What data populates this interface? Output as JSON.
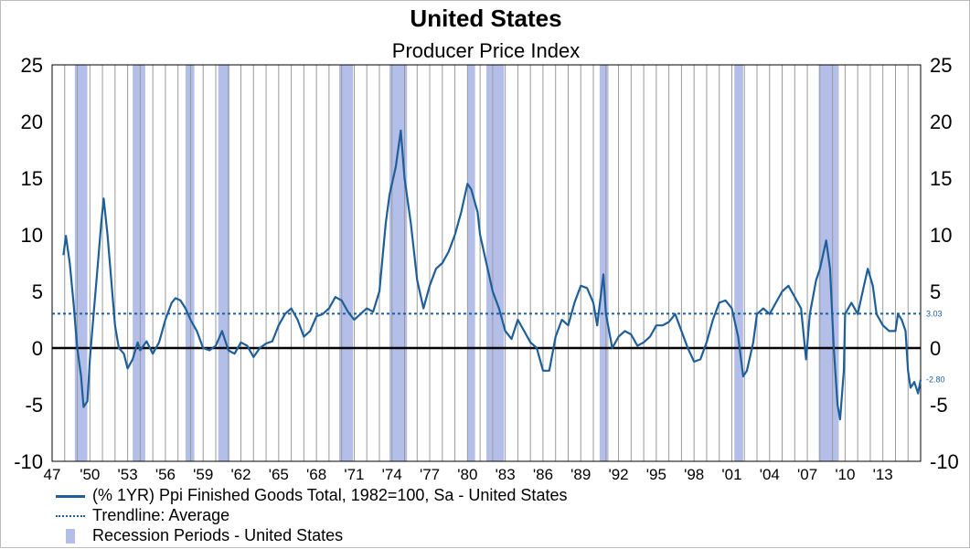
{
  "chart_data": {
    "type": "line",
    "title": "United States",
    "subtitle": "Producer Price Index",
    "ylim": [
      -10,
      25
    ],
    "yticks": [
      "25",
      "20",
      "15",
      "10",
      "5",
      "0",
      "-5",
      "-10"
    ],
    "xlim": [
      1947,
      2016
    ],
    "xticks": [
      "47",
      "'50",
      "'53",
      "'56",
      "'59",
      "'62",
      "'65",
      "'68",
      "'71",
      "'74",
      "'77",
      "'80",
      "'83",
      "'86",
      "'89",
      "'92",
      "'95",
      "'98",
      "'01",
      "'04",
      "'07",
      "'10",
      "'13"
    ],
    "grid": "vertical",
    "series": [
      {
        "name": "(% 1YR) Ppi Finished Goods Total, 1982=100, Sa - United States",
        "color": "#1f5f99",
        "end_label": "-2.80",
        "points": [
          [
            1947.9,
            8.2
          ],
          [
            1948.1,
            9.9
          ],
          [
            1948.4,
            7.5
          ],
          [
            1948.7,
            4
          ],
          [
            1949.0,
            0
          ],
          [
            1949.3,
            -2.5
          ],
          [
            1949.5,
            -5.2
          ],
          [
            1949.8,
            -4.7
          ],
          [
            1950.0,
            -1
          ],
          [
            1950.3,
            3
          ],
          [
            1950.6,
            7
          ],
          [
            1950.9,
            11
          ],
          [
            1951.1,
            13.2
          ],
          [
            1951.4,
            10
          ],
          [
            1951.7,
            6
          ],
          [
            1952.0,
            2
          ],
          [
            1952.3,
            0
          ],
          [
            1952.7,
            -0.5
          ],
          [
            1953.0,
            -1.8
          ],
          [
            1953.4,
            -1
          ],
          [
            1953.8,
            0.5
          ],
          [
            1954.0,
            -0.2
          ],
          [
            1954.5,
            0.6
          ],
          [
            1955.0,
            -0.5
          ],
          [
            1955.5,
            0.5
          ],
          [
            1956.0,
            2.5
          ],
          [
            1956.5,
            4
          ],
          [
            1956.8,
            4.4
          ],
          [
            1957.2,
            4.2
          ],
          [
            1957.6,
            3.5
          ],
          [
            1958.0,
            2.5
          ],
          [
            1958.5,
            1.5
          ],
          [
            1959.0,
            0
          ],
          [
            1959.5,
            -0.2
          ],
          [
            1960.0,
            0.2
          ],
          [
            1960.5,
            1.5
          ],
          [
            1961.0,
            -0.2
          ],
          [
            1961.5,
            -0.5
          ],
          [
            1962.0,
            0.5
          ],
          [
            1962.5,
            0.2
          ],
          [
            1963.0,
            -0.8
          ],
          [
            1963.5,
            0
          ],
          [
            1964.0,
            0.4
          ],
          [
            1964.5,
            0.6
          ],
          [
            1965.0,
            2
          ],
          [
            1965.5,
            3
          ],
          [
            1966.0,
            3.5
          ],
          [
            1966.5,
            2.5
          ],
          [
            1967.0,
            1
          ],
          [
            1967.5,
            1.5
          ],
          [
            1968.0,
            2.8
          ],
          [
            1968.5,
            3
          ],
          [
            1969.0,
            3.5
          ],
          [
            1969.5,
            4.5
          ],
          [
            1970.0,
            4.2
          ],
          [
            1970.5,
            3.2
          ],
          [
            1971.0,
            2.5
          ],
          [
            1971.5,
            3
          ],
          [
            1972.0,
            3.5
          ],
          [
            1972.5,
            3.2
          ],
          [
            1973.0,
            5
          ],
          [
            1973.5,
            11
          ],
          [
            1973.8,
            13.5
          ],
          [
            1974.3,
            16
          ],
          [
            1974.7,
            19.2
          ],
          [
            1975.0,
            15
          ],
          [
            1975.5,
            11
          ],
          [
            1976.0,
            6
          ],
          [
            1976.5,
            3.5
          ],
          [
            1977.0,
            5.5
          ],
          [
            1977.5,
            7
          ],
          [
            1978.0,
            7.5
          ],
          [
            1978.5,
            8.5
          ],
          [
            1979.0,
            10
          ],
          [
            1979.5,
            12
          ],
          [
            1980.0,
            14.5
          ],
          [
            1980.3,
            14
          ],
          [
            1980.8,
            12
          ],
          [
            1981.0,
            10
          ],
          [
            1981.5,
            7.5
          ],
          [
            1982.0,
            5
          ],
          [
            1982.5,
            3.5
          ],
          [
            1983.0,
            1.5
          ],
          [
            1983.5,
            0.8
          ],
          [
            1984.0,
            2.5
          ],
          [
            1984.5,
            1.5
          ],
          [
            1985.0,
            0.5
          ],
          [
            1985.5,
            0
          ],
          [
            1986.0,
            -2
          ],
          [
            1986.5,
            -2
          ],
          [
            1987.0,
            1
          ],
          [
            1987.5,
            2.5
          ],
          [
            1988.0,
            2
          ],
          [
            1988.5,
            4
          ],
          [
            1989.0,
            5.5
          ],
          [
            1989.5,
            5.3
          ],
          [
            1990.0,
            4
          ],
          [
            1990.3,
            2
          ],
          [
            1990.8,
            6.5
          ],
          [
            1991.0,
            3
          ],
          [
            1991.5,
            0
          ],
          [
            1992.0,
            1
          ],
          [
            1992.5,
            1.5
          ],
          [
            1993.0,
            1.2
          ],
          [
            1993.5,
            0.2
          ],
          [
            1994.0,
            0.5
          ],
          [
            1994.5,
            1
          ],
          [
            1995.0,
            2
          ],
          [
            1995.5,
            2
          ],
          [
            1996.0,
            2.3
          ],
          [
            1996.5,
            3
          ],
          [
            1997.0,
            1.5
          ],
          [
            1997.5,
            0
          ],
          [
            1998.0,
            -1.2
          ],
          [
            1998.5,
            -1
          ],
          [
            1999.0,
            0.5
          ],
          [
            1999.5,
            2.5
          ],
          [
            2000.0,
            4
          ],
          [
            2000.5,
            4.2
          ],
          [
            2001.0,
            3.5
          ],
          [
            2001.5,
            1
          ],
          [
            2001.9,
            -2.5
          ],
          [
            2002.2,
            -2
          ],
          [
            2002.7,
            0.5
          ],
          [
            2003.0,
            3
          ],
          [
            2003.5,
            3.5
          ],
          [
            2004.0,
            3
          ],
          [
            2004.5,
            4
          ],
          [
            2005.0,
            5
          ],
          [
            2005.5,
            5.5
          ],
          [
            2006.0,
            4.5
          ],
          [
            2006.5,
            3.5
          ],
          [
            2006.9,
            -1
          ],
          [
            2007.2,
            3
          ],
          [
            2007.7,
            6
          ],
          [
            2008.0,
            7
          ],
          [
            2008.5,
            9.5
          ],
          [
            2008.8,
            7
          ],
          [
            2009.1,
            0
          ],
          [
            2009.4,
            -5
          ],
          [
            2009.6,
            -6.3
          ],
          [
            2009.9,
            -2
          ],
          [
            2010.0,
            3
          ],
          [
            2010.5,
            4
          ],
          [
            2011.0,
            3
          ],
          [
            2011.5,
            5.5
          ],
          [
            2011.8,
            7
          ],
          [
            2012.2,
            5.5
          ],
          [
            2012.5,
            3
          ],
          [
            2013.0,
            2
          ],
          [
            2013.5,
            1.5
          ],
          [
            2014.0,
            1.5
          ],
          [
            2014.2,
            3
          ],
          [
            2014.5,
            2.5
          ],
          [
            2014.8,
            1.5
          ],
          [
            2015.0,
            -2
          ],
          [
            2015.2,
            -3.5
          ],
          [
            2015.5,
            -3
          ],
          [
            2015.8,
            -4
          ],
          [
            2016.0,
            -2.8
          ]
        ]
      },
      {
        "name": "Trendline: Average",
        "color": "#1f5f99",
        "value": 3.03,
        "end_label": "3.03"
      }
    ],
    "recessions_name": "Recession Periods - United States",
    "recessions_color": "#b3bfe8",
    "recessions": [
      [
        1948.8,
        1949.8
      ],
      [
        1953.4,
        1954.4
      ],
      [
        1957.6,
        1958.3
      ],
      [
        1960.2,
        1961.1
      ],
      [
        1969.8,
        1970.9
      ],
      [
        1973.8,
        1975.2
      ],
      [
        1980.0,
        1980.6
      ],
      [
        1981.5,
        1982.9
      ],
      [
        1990.5,
        1991.2
      ],
      [
        2001.2,
        2001.9
      ],
      [
        2007.9,
        2009.5
      ]
    ],
    "legend_position": "bottom-left"
  }
}
